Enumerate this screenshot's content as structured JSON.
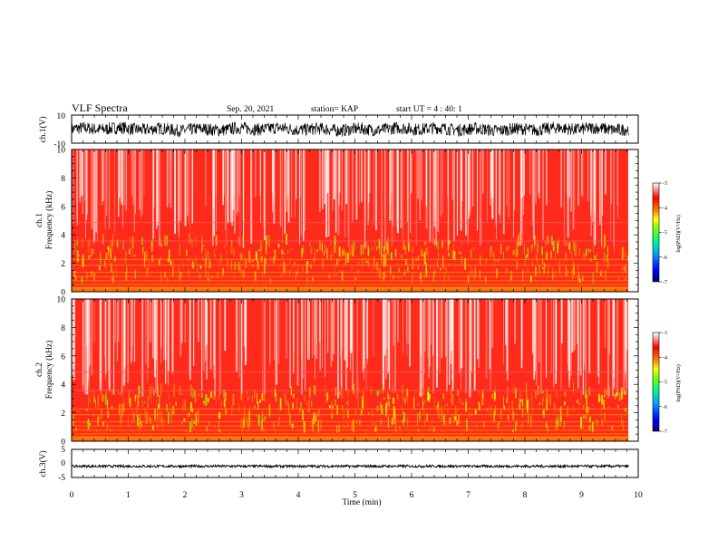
{
  "header": {
    "title": "VLF Spectra",
    "date": "Sep. 20, 2021",
    "station": "station= KAP",
    "start": "start  UT =   4 : 40: 1"
  },
  "colors": {
    "background": "#ffffff",
    "axes": "#000000",
    "colormap": [
      "#000066",
      "#0000ff",
      "#00a0ff",
      "#00ff80",
      "#80ff00",
      "#ffff00",
      "#ff8000",
      "#ff0000",
      "#ffffff"
    ]
  },
  "chart_data": [
    {
      "type": "line",
      "panel": "ch1-waveform",
      "ylabel": "ch.1(V)",
      "ylim": [
        -10,
        10
      ],
      "yticks": [
        "10",
        "-10"
      ],
      "xlim": [
        0,
        10
      ],
      "description_of_series": "dense noisy waveform filling roughly -5 to 5 V across 0–9.8 min"
    },
    {
      "type": "heatmap",
      "panel": "ch1-spectrogram",
      "ylabel": "ch.1\nFrequency (kHz)",
      "ylabel_lines": [
        "ch.1",
        "Frequency (kHz)"
      ],
      "ylim": [
        0,
        10
      ],
      "yticks": [
        "0",
        "2",
        "4",
        "6",
        "8",
        "10"
      ],
      "xlim": [
        0,
        9.83
      ],
      "colorbar": {
        "label": "log(PSD)(V²/Hz)",
        "ticks": [
          "-3",
          "-4",
          "-5",
          "-6",
          "-7"
        ],
        "range": [
          -7,
          -3
        ]
      }
    },
    {
      "type": "heatmap",
      "panel": "ch2-spectrogram",
      "ylabel": "ch.2\nFrequency (kHz)",
      "ylabel_lines": [
        "ch.2",
        "Frequency (kHz)"
      ],
      "ylim": [
        0,
        10
      ],
      "yticks": [
        "0",
        "2",
        "4",
        "6",
        "8",
        "10"
      ],
      "xlim": [
        0,
        9.83
      ],
      "colorbar": {
        "label": "log(PSD)(V²/Hz)",
        "ticks": [
          "-3",
          "-4",
          "-5",
          "-6",
          "-7"
        ],
        "range": [
          -7,
          -3
        ]
      }
    },
    {
      "type": "line",
      "panel": "ch3-waveform",
      "ylabel": "ch.3(V)",
      "ylim": [
        -5,
        5
      ],
      "yticks": [
        "5",
        "0",
        "-5"
      ],
      "xlim": [
        0,
        10
      ],
      "xlabel": "Time (min)",
      "xticks": [
        "0",
        "1",
        "2",
        "3",
        "4",
        "5",
        "6",
        "7",
        "8",
        "9",
        "10"
      ],
      "description_of_series": "narrow dense band near -1 V across 0–9.8 min"
    }
  ]
}
